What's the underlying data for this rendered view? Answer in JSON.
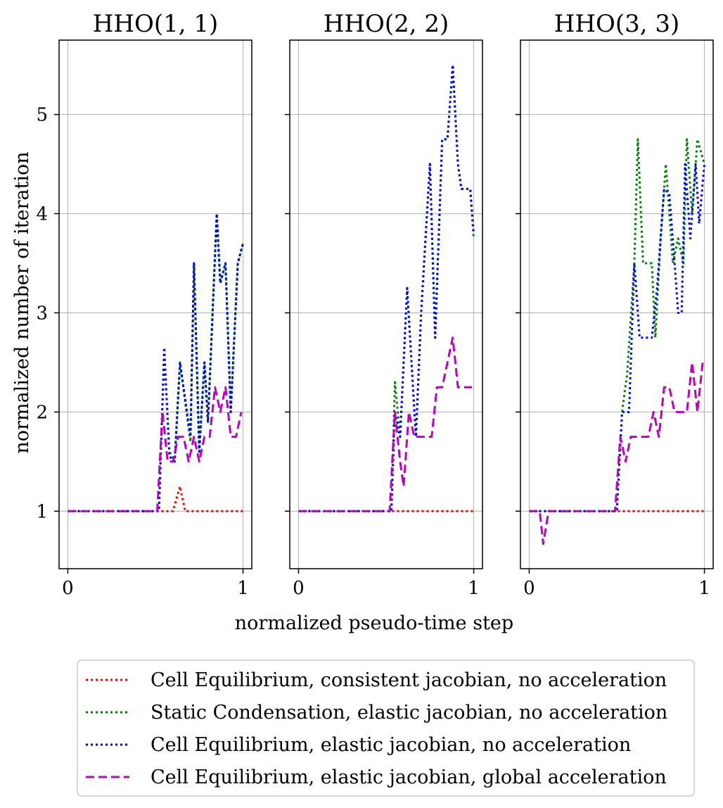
{
  "figure": {
    "xlabel": "normalized pseudo-time step",
    "ylabel": "normalized number of iteration"
  },
  "legend": {
    "placement": "bottom-center",
    "entries": [
      {
        "key": "ce_cons",
        "label": "Cell Equilibrium, consistent jacobian, no acceleration",
        "color": "#ff0000",
        "style": "dotted"
      },
      {
        "key": "sc_el",
        "label": "Static Condensation, elastic jacobian, no acceleration",
        "color": "#008000",
        "style": "dotted"
      },
      {
        "key": "ce_el",
        "label": "Cell Equilibrium, elastic jacobian, no acceleration",
        "color": "#0000ff",
        "style": "dotted"
      },
      {
        "key": "ce_el_acc",
        "label": "Cell Equilibrium, elastic jacobian, global acceleration",
        "color": "#bf00bf",
        "style": "dashed"
      }
    ]
  },
  "chart_data": [
    {
      "type": "line",
      "title": "HHO(1, 1)",
      "xlim": [
        -0.05,
        1.05
      ],
      "ylim": [
        0.42,
        5.75
      ],
      "xticks": [
        0,
        1
      ],
      "yticks": [
        1,
        2,
        3,
        4,
        5
      ],
      "grid": true,
      "series": [
        {
          "key": "ce_cons",
          "points": [
            [
              0,
              1
            ],
            [
              0.6,
              1
            ],
            [
              0.64,
              1.25
            ],
            [
              0.67,
              1
            ],
            [
              1,
              1
            ]
          ]
        },
        {
          "key": "sc_el",
          "points": [
            [
              0,
              1
            ],
            [
              0.52,
              1
            ],
            [
              0.55,
              2.6
            ],
            [
              0.58,
              1.6
            ],
            [
              0.61,
              1.5
            ],
            [
              0.64,
              2.5
            ],
            [
              0.7,
              1.7
            ],
            [
              0.72,
              3.5
            ],
            [
              0.75,
              1.6
            ],
            [
              0.78,
              2.5
            ],
            [
              0.8,
              1.9
            ],
            [
              0.85,
              4.0
            ],
            [
              0.87,
              3.3
            ],
            [
              0.9,
              3.5
            ],
            [
              0.93,
              2.0
            ],
            [
              0.97,
              3.5
            ],
            [
              1,
              3.7
            ]
          ]
        },
        {
          "key": "ce_el",
          "points": [
            [
              0,
              1
            ],
            [
              0.52,
              1
            ],
            [
              0.55,
              2.65
            ],
            [
              0.58,
              1.55
            ],
            [
              0.61,
              1.5
            ],
            [
              0.64,
              2.5
            ],
            [
              0.7,
              1.75
            ],
            [
              0.72,
              3.5
            ],
            [
              0.75,
              1.6
            ],
            [
              0.78,
              2.5
            ],
            [
              0.8,
              1.9
            ],
            [
              0.85,
              4.0
            ],
            [
              0.87,
              3.3
            ],
            [
              0.9,
              3.5
            ],
            [
              0.93,
              2.0
            ],
            [
              0.97,
              3.5
            ],
            [
              1,
              3.7
            ]
          ]
        },
        {
          "key": "ce_el_acc",
          "points": [
            [
              0,
              1
            ],
            [
              0.51,
              1
            ],
            [
              0.54,
              2.0
            ],
            [
              0.57,
              1.5
            ],
            [
              0.6,
              1.5
            ],
            [
              0.63,
              1.75
            ],
            [
              0.66,
              1.75
            ],
            [
              0.69,
              1.5
            ],
            [
              0.72,
              1.75
            ],
            [
              0.75,
              1.5
            ],
            [
              0.78,
              1.75
            ],
            [
              0.81,
              1.75
            ],
            [
              0.84,
              2.25
            ],
            [
              0.87,
              2.0
            ],
            [
              0.9,
              2.25
            ],
            [
              0.93,
              1.75
            ],
            [
              0.96,
              1.75
            ],
            [
              0.99,
              2.0
            ]
          ]
        }
      ]
    },
    {
      "type": "line",
      "title": "HHO(2, 2)",
      "xlim": [
        -0.05,
        1.05
      ],
      "ylim": [
        0.42,
        5.75
      ],
      "xticks": [
        0,
        1
      ],
      "yticks": [
        1,
        2,
        3,
        4,
        5
      ],
      "grid": true,
      "series": [
        {
          "key": "ce_cons",
          "points": [
            [
              0,
              1
            ],
            [
              1,
              1
            ]
          ]
        },
        {
          "key": "sc_el",
          "points": [
            [
              0,
              1
            ],
            [
              0.53,
              1
            ],
            [
              0.55,
              2.3
            ],
            [
              0.58,
              1.75
            ],
            [
              0.62,
              3.25
            ],
            [
              0.67,
              1.75
            ],
            [
              0.7,
              3.0
            ],
            [
              0.75,
              4.5
            ],
            [
              0.78,
              2.75
            ],
            [
              0.82,
              4.75
            ],
            [
              0.85,
              4.75
            ],
            [
              0.88,
              5.5
            ],
            [
              0.91,
              4.5
            ],
            [
              0.93,
              4.25
            ],
            [
              0.98,
              4.25
            ],
            [
              1,
              3.75
            ]
          ]
        },
        {
          "key": "ce_el",
          "points": [
            [
              0,
              1
            ],
            [
              0.53,
              1
            ],
            [
              0.55,
              2.0
            ],
            [
              0.58,
              1.75
            ],
            [
              0.62,
              3.25
            ],
            [
              0.67,
              1.75
            ],
            [
              0.7,
              3.0
            ],
            [
              0.75,
              4.5
            ],
            [
              0.78,
              2.75
            ],
            [
              0.82,
              4.75
            ],
            [
              0.85,
              4.75
            ],
            [
              0.88,
              5.5
            ],
            [
              0.91,
              4.5
            ],
            [
              0.93,
              4.25
            ],
            [
              0.98,
              4.25
            ],
            [
              1,
              3.8
            ]
          ]
        },
        {
          "key": "ce_el_acc",
          "points": [
            [
              0,
              1
            ],
            [
              0.52,
              1
            ],
            [
              0.55,
              2.0
            ],
            [
              0.58,
              1.5
            ],
            [
              0.6,
              1.25
            ],
            [
              0.63,
              2.0
            ],
            [
              0.66,
              1.75
            ],
            [
              0.73,
              1.75
            ],
            [
              0.76,
              1.75
            ],
            [
              0.79,
              2.25
            ],
            [
              0.82,
              2.25
            ],
            [
              0.85,
              2.5
            ],
            [
              0.88,
              2.75
            ],
            [
              0.91,
              2.25
            ],
            [
              0.99,
              2.25
            ]
          ]
        }
      ]
    },
    {
      "type": "line",
      "title": "HHO(3, 3)",
      "xlim": [
        -0.05,
        1.05
      ],
      "ylim": [
        0.42,
        5.75
      ],
      "xticks": [
        0,
        1
      ],
      "yticks": [
        1,
        2,
        3,
        4,
        5
      ],
      "grid": true,
      "series": [
        {
          "key": "ce_cons",
          "points": [
            [
              0,
              1
            ],
            [
              1,
              1
            ]
          ]
        },
        {
          "key": "sc_el",
          "points": [
            [
              0,
              1
            ],
            [
              0.5,
              1
            ],
            [
              0.53,
              2.0
            ],
            [
              0.56,
              2.4
            ],
            [
              0.6,
              3.5
            ],
            [
              0.62,
              4.75
            ],
            [
              0.65,
              3.5
            ],
            [
              0.7,
              3.5
            ],
            [
              0.72,
              2.75
            ],
            [
              0.75,
              3.75
            ],
            [
              0.78,
              4.5
            ],
            [
              0.82,
              3.5
            ],
            [
              0.85,
              3.75
            ],
            [
              0.88,
              3.5
            ],
            [
              0.9,
              4.75
            ],
            [
              0.93,
              4.0
            ],
            [
              0.96,
              4.75
            ],
            [
              1,
              4.5
            ]
          ]
        },
        {
          "key": "ce_el",
          "points": [
            [
              0,
              1
            ],
            [
              0.5,
              1
            ],
            [
              0.53,
              2.0
            ],
            [
              0.57,
              2.0
            ],
            [
              0.6,
              3.5
            ],
            [
              0.63,
              2.75
            ],
            [
              0.7,
              2.75
            ],
            [
              0.73,
              3.25
            ],
            [
              0.77,
              4.25
            ],
            [
              0.8,
              4.2
            ],
            [
              0.83,
              3.5
            ],
            [
              0.85,
              3.0
            ],
            [
              0.87,
              3.0
            ],
            [
              0.89,
              4.5
            ],
            [
              0.92,
              3.75
            ],
            [
              0.95,
              4.5
            ],
            [
              0.97,
              3.9
            ],
            [
              1,
              4.5
            ]
          ]
        },
        {
          "key": "ce_el_acc",
          "points": [
            [
              0,
              1
            ],
            [
              0.06,
              1
            ],
            [
              0.08,
              0.67
            ],
            [
              0.11,
              1
            ],
            [
              0.49,
              1
            ],
            [
              0.52,
              1.75
            ],
            [
              0.55,
              1.5
            ],
            [
              0.58,
              1.75
            ],
            [
              0.65,
              1.75
            ],
            [
              0.68,
              1.75
            ],
            [
              0.71,
              2.0
            ],
            [
              0.74,
              1.75
            ],
            [
              0.77,
              2.25
            ],
            [
              0.8,
              2.25
            ],
            [
              0.83,
              2.0
            ],
            [
              0.9,
              2.0
            ],
            [
              0.93,
              2.5
            ],
            [
              0.96,
              2.0
            ],
            [
              0.99,
              2.5
            ]
          ]
        }
      ]
    }
  ]
}
